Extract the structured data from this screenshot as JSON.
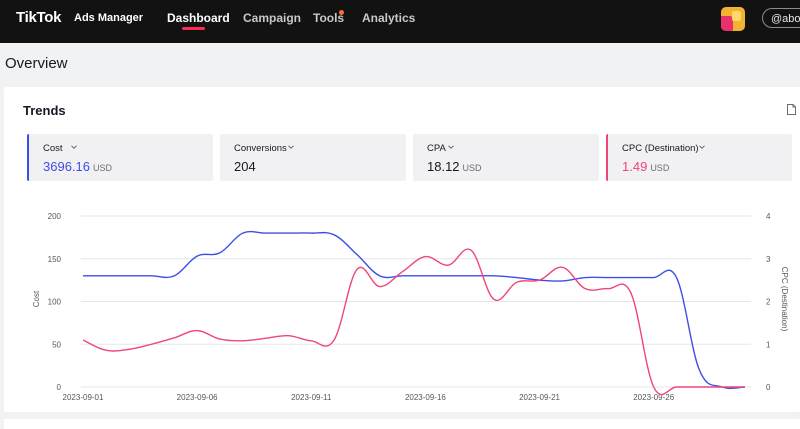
{
  "header": {
    "logo": "TikTok",
    "product": "Ads Manager",
    "nav": [
      {
        "label": "Dashboard",
        "active": true
      },
      {
        "label": "Campaign"
      },
      {
        "label": "Tools",
        "badge_color": "#fe6a3c"
      },
      {
        "label": "Analytics"
      }
    ],
    "account": "@abog",
    "avatar_icon": "avatar-icon"
  },
  "page": {
    "title": "Overview"
  },
  "trends": {
    "title": "Trends",
    "export_icon": "document-export-icon",
    "metrics": [
      {
        "label": "Cost",
        "value": "3696.16",
        "unit": "USD",
        "color": "#3d4ee8"
      },
      {
        "label": "Conversions",
        "value": "204",
        "unit": ""
      },
      {
        "label": "CPA",
        "value": "18.12",
        "unit": "USD"
      },
      {
        "label": "CPC (Destination)",
        "value": "1.49",
        "unit": "USD",
        "color": "#f0457a"
      }
    ]
  },
  "chart_data": {
    "type": "line",
    "x": [
      "2023-09-01",
      "2023-09-02",
      "2023-09-03",
      "2023-09-04",
      "2023-09-05",
      "2023-09-06",
      "2023-09-07",
      "2023-09-08",
      "2023-09-09",
      "2023-09-10",
      "2023-09-11",
      "2023-09-12",
      "2023-09-13",
      "2023-09-14",
      "2023-09-15",
      "2023-09-16",
      "2023-09-17",
      "2023-09-18",
      "2023-09-19",
      "2023-09-20",
      "2023-09-21",
      "2023-09-22",
      "2023-09-23",
      "2023-09-24",
      "2023-09-25",
      "2023-09-26",
      "2023-09-27",
      "2023-09-28",
      "2023-09-29",
      "2023-09-30"
    ],
    "xticks": [
      "2023-09-01",
      "2023-09-06",
      "2023-09-11",
      "2023-09-16",
      "2023-09-21",
      "2023-09-26"
    ],
    "ylabel_left": "Cost",
    "ylabel_right": "CPC (Destination)",
    "ylim_left": [
      0,
      200
    ],
    "ylim_right": [
      0,
      4
    ],
    "yticks_left": [
      0,
      50,
      100,
      150,
      200
    ],
    "yticks_right": [
      0,
      1,
      2,
      3,
      4
    ],
    "grid": true,
    "series": [
      {
        "name": "Cost",
        "axis": "left",
        "color": "#3d4ee8",
        "values": [
          130,
          130,
          130,
          130,
          130,
          153,
          157,
          180,
          180,
          180,
          180,
          178,
          155,
          130,
          130,
          130,
          130,
          130,
          130,
          128,
          125,
          124,
          128,
          128,
          128,
          128,
          128,
          20,
          0,
          0
        ]
      },
      {
        "name": "CPC (Destination)",
        "axis": "right",
        "color": "#f0457a",
        "values": [
          1.1,
          0.86,
          0.88,
          1.0,
          1.15,
          1.32,
          1.12,
          1.08,
          1.14,
          1.2,
          1.08,
          1.1,
          2.75,
          2.35,
          2.7,
          3.05,
          2.85,
          3.2,
          2.05,
          2.45,
          2.5,
          2.8,
          2.3,
          2.3,
          2.2,
          0,
          0,
          0,
          0,
          0
        ]
      }
    ]
  }
}
